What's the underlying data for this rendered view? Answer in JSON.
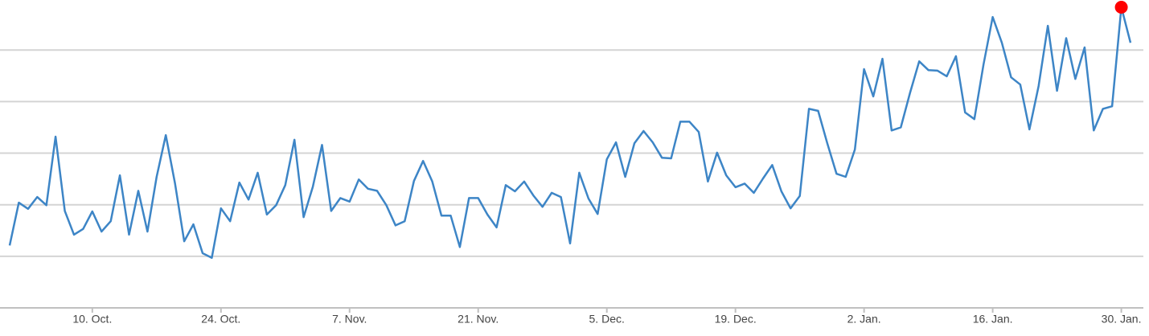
{
  "chart_data": {
    "type": "line",
    "categories": [
      "1. Oct.",
      "2. Oct.",
      "3. Oct.",
      "4. Oct.",
      "5. Oct.",
      "6. Oct.",
      "7. Oct.",
      "8. Oct.",
      "9. Oct.",
      "10. Oct.",
      "11. Oct.",
      "12. Oct.",
      "13. Oct.",
      "14. Oct.",
      "15. Oct.",
      "16. Oct.",
      "17. Oct.",
      "18. Oct.",
      "19. Oct.",
      "20. Oct.",
      "21. Oct.",
      "22. Oct.",
      "23. Oct.",
      "24. Oct.",
      "25. Oct.",
      "26. Oct.",
      "27. Oct.",
      "28. Oct.",
      "29. Oct.",
      "30. Oct.",
      "31. Oct.",
      "1. Nov.",
      "2. Nov.",
      "3. Nov.",
      "4. Nov.",
      "5. Nov.",
      "6. Nov.",
      "7. Nov.",
      "8. Nov.",
      "9. Nov.",
      "10. Nov.",
      "11. Nov.",
      "12. Nov.",
      "13. Nov.",
      "14. Nov.",
      "15. Nov.",
      "16. Nov.",
      "17. Nov.",
      "18. Nov.",
      "19. Nov.",
      "20. Nov.",
      "21. Nov.",
      "22. Nov.",
      "23. Nov.",
      "24. Nov.",
      "25. Nov.",
      "26. Nov.",
      "27. Nov.",
      "28. Nov.",
      "29. Nov.",
      "30. Nov.",
      "1. Dec.",
      "2. Dec.",
      "3. Dec.",
      "4. Dec.",
      "5. Dec.",
      "6. Dec.",
      "7. Dec.",
      "8. Dec.",
      "9. Dec.",
      "10. Dec.",
      "11. Dec.",
      "12. Dec.",
      "13. Dec.",
      "14. Dec.",
      "15. Dec.",
      "16. Dec.",
      "17. Dec.",
      "18. Dec.",
      "19. Dec.",
      "20. Dec.",
      "21. Dec.",
      "22. Dec.",
      "23. Dec.",
      "24. Dec.",
      "25. Dec.",
      "26. Dec.",
      "27. Dec.",
      "28. Dec.",
      "29. Dec.",
      "30. Dec.",
      "31. Dec.",
      "1. Jan.",
      "2. Jan.",
      "3. Jan.",
      "4. Jan.",
      "5. Jan.",
      "6. Jan.",
      "7. Jan.",
      "8. Jan.",
      "9. Jan.",
      "10. Jan.",
      "11. Jan.",
      "12. Jan.",
      "13. Jan.",
      "14. Jan.",
      "15. Jan.",
      "16. Jan.",
      "17. Jan.",
      "18. Jan.",
      "19. Jan.",
      "20. Jan.",
      "21. Jan.",
      "22. Jan.",
      "23. Jan.",
      "24. Jan.",
      "25. Jan.",
      "26. Jan.",
      "27. Jan.",
      "28. Jan.",
      "29. Jan.",
      "30. Jan.",
      "31. Jan."
    ],
    "values": [
      1.21,
      2.04,
      1.92,
      2.15,
      1.99,
      3.32,
      1.88,
      1.42,
      1.53,
      1.87,
      1.48,
      1.68,
      2.57,
      1.42,
      2.27,
      1.48,
      2.54,
      3.35,
      2.41,
      1.29,
      1.62,
      1.06,
      0.97,
      1.93,
      1.68,
      2.43,
      2.1,
      2.62,
      1.81,
      1.99,
      2.38,
      3.26,
      1.76,
      2.35,
      3.16,
      1.88,
      2.13,
      2.06,
      2.49,
      2.31,
      2.27,
      1.99,
      1.6,
      1.68,
      2.46,
      2.85,
      2.45,
      1.79,
      1.79,
      1.18,
      2.13,
      2.13,
      1.81,
      1.56,
      2.38,
      2.26,
      2.45,
      2.18,
      1.96,
      2.23,
      2.15,
      1.25,
      2.62,
      2.12,
      1.82,
      2.88,
      3.21,
      2.54,
      3.19,
      3.43,
      3.21,
      2.91,
      2.9,
      3.61,
      3.61,
      3.41,
      2.45,
      3.01,
      2.57,
      2.34,
      2.41,
      2.23,
      2.51,
      2.77,
      2.26,
      1.93,
      2.17,
      3.86,
      3.82,
      3.19,
      2.6,
      2.54,
      3.07,
      4.63,
      4.1,
      4.83,
      3.44,
      3.5,
      4.17,
      4.78,
      4.61,
      4.6,
      4.49,
      4.88,
      3.79,
      3.66,
      4.72,
      5.64,
      5.14,
      4.47,
      4.33,
      3.46,
      4.3,
      5.47,
      4.21,
      5.23,
      4.44,
      5.05,
      3.44,
      3.86,
      3.91,
      5.83,
      5.14
    ],
    "color": "#3d85c6",
    "max_marker_color": "#ff0000",
    "xticks": [
      "10. Oct.",
      "24. Oct.",
      "7. Nov.",
      "21. Nov.",
      "5. Dec.",
      "19. Dec.",
      "2. Jan.",
      "16. Jan.",
      "30. Jan."
    ],
    "ylim": [
      0,
      5.97
    ],
    "yticks": [
      1,
      2,
      3,
      4,
      5
    ],
    "grid": true
  }
}
